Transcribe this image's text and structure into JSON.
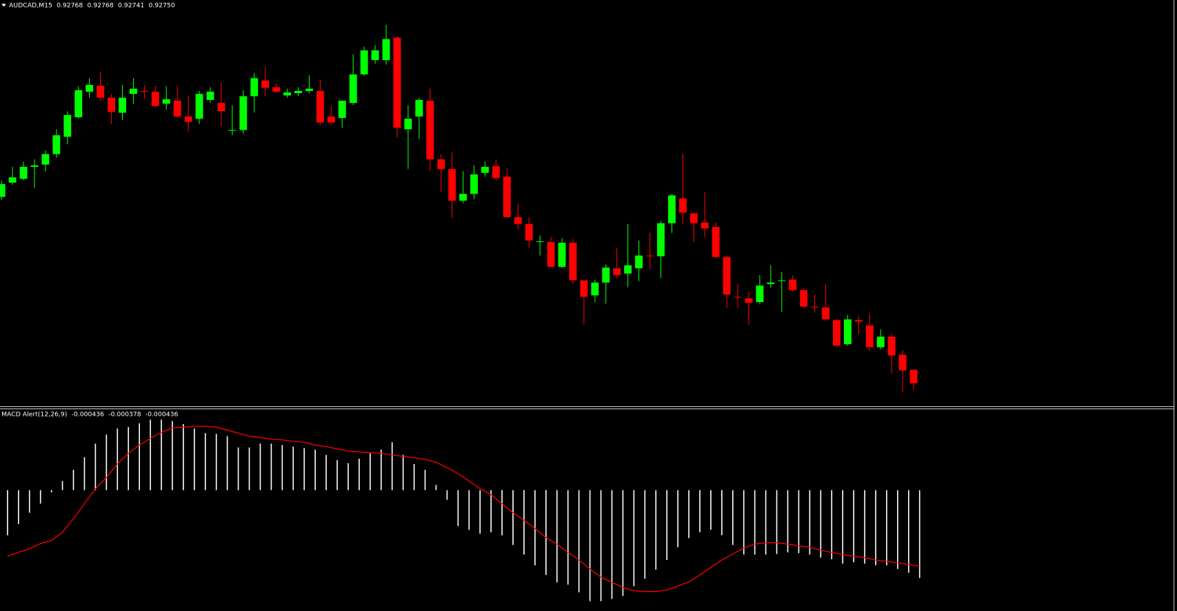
{
  "chart_data": [
    {
      "type": "candlestick",
      "title": "AUDCAD,M15",
      "header_values": [
        "0.92768",
        "0.92768",
        "0.92741",
        "0.92750"
      ],
      "ylim": [
        0.9272,
        0.9326
      ],
      "up_color": "#00ff00",
      "down_color": "#ff0000",
      "open": [
        0.92998,
        0.93017,
        0.93022,
        0.93038,
        0.93041,
        0.93055,
        0.93078,
        0.93104,
        0.93138,
        0.93146,
        0.9313,
        0.9311,
        0.93135,
        0.93139,
        0.93138,
        0.93122,
        0.93126,
        0.93105,
        0.93102,
        0.93127,
        0.93123,
        0.93086,
        0.93087,
        0.93132,
        0.93153,
        0.93144,
        0.93133,
        0.93136,
        0.93139,
        0.93139,
        0.93105,
        0.93103,
        0.93123,
        0.93161,
        0.9318,
        0.9318,
        0.9321,
        0.93088,
        0.93105,
        0.93126,
        0.93048,
        0.93035,
        0.92993,
        0.93002,
        0.9303,
        0.93039,
        0.93025,
        0.92971,
        0.92962,
        0.92938,
        0.92938,
        0.92905,
        0.92937,
        0.92887,
        0.92867,
        0.92884,
        0.92903,
        0.92896,
        0.92903,
        0.9292,
        0.92919,
        0.92963,
        0.92996,
        0.92976,
        0.92964,
        0.92958,
        0.92918,
        0.92865,
        0.92863,
        0.92858,
        0.92882,
        0.92886,
        0.92888,
        0.92874,
        0.92852,
        0.92851,
        0.92834,
        0.92802,
        0.92834,
        0.92827,
        0.92798,
        0.92812,
        0.92788,
        0.92768
      ],
      "high": [
        0.9302,
        0.93038,
        0.93045,
        0.93048,
        0.9306,
        0.93088,
        0.93112,
        0.93145,
        0.93156,
        0.93164,
        0.93135,
        0.93147,
        0.93156,
        0.93147,
        0.93146,
        0.93145,
        0.93146,
        0.93133,
        0.93139,
        0.93144,
        0.9315,
        0.9312,
        0.9314,
        0.93163,
        0.93171,
        0.93149,
        0.93142,
        0.93144,
        0.9316,
        0.93154,
        0.93119,
        0.93126,
        0.93188,
        0.93198,
        0.932,
        0.93227,
        0.93212,
        0.9312,
        0.9313,
        0.93142,
        0.93055,
        0.93057,
        0.93032,
        0.9304,
        0.93045,
        0.93048,
        0.93036,
        0.92989,
        0.92971,
        0.92947,
        0.92945,
        0.92943,
        0.92942,
        0.92887,
        0.92888,
        0.92908,
        0.9293,
        0.92962,
        0.9294,
        0.9295,
        0.92966,
        0.93002,
        0.93055,
        0.92978,
        0.93004,
        0.92964,
        0.9292,
        0.92882,
        0.92872,
        0.92894,
        0.92907,
        0.92898,
        0.92894,
        0.92877,
        0.92868,
        0.92882,
        0.92836,
        0.92841,
        0.9284,
        0.92842,
        0.92822,
        0.92816,
        0.92794,
        0.92768
      ],
      "low": [
        0.92994,
        0.93014,
        0.9302,
        0.9301,
        0.93032,
        0.9305,
        0.93068,
        0.93102,
        0.9313,
        0.93126,
        0.93095,
        0.931,
        0.93122,
        0.93128,
        0.93117,
        0.93114,
        0.93103,
        0.93085,
        0.93095,
        0.93123,
        0.93092,
        0.9308,
        0.93082,
        0.9311,
        0.93132,
        0.93136,
        0.9313,
        0.93132,
        0.93136,
        0.93093,
        0.93094,
        0.9309,
        0.9312,
        0.93159,
        0.93175,
        0.93174,
        0.93077,
        0.93035,
        0.93075,
        0.93032,
        0.93005,
        0.9297,
        0.9299,
        0.92995,
        0.93025,
        0.9302,
        0.9297,
        0.92955,
        0.9293,
        0.9292,
        0.92904,
        0.92903,
        0.92882,
        0.92828,
        0.92858,
        0.92856,
        0.9289,
        0.92878,
        0.92886,
        0.92902,
        0.9289,
        0.9295,
        0.92962,
        0.92938,
        0.92944,
        0.92916,
        0.9285,
        0.9285,
        0.92828,
        0.92855,
        0.92877,
        0.92845,
        0.92872,
        0.9285,
        0.92844,
        0.92833,
        0.92798,
        0.928,
        0.92815,
        0.92793,
        0.92795,
        0.92763,
        0.92738,
        0.92741
      ],
      "close": [
        0.93015,
        0.93024,
        0.93038,
        0.9304,
        0.93055,
        0.9308,
        0.93107,
        0.9314,
        0.93147,
        0.9313,
        0.93111,
        0.9313,
        0.93142,
        0.93138,
        0.93119,
        0.93128,
        0.93105,
        0.93098,
        0.93135,
        0.93138,
        0.93112,
        0.93087,
        0.93132,
        0.93156,
        0.93143,
        0.93138,
        0.93137,
        0.93139,
        0.93142,
        0.93097,
        0.93097,
        0.93126,
        0.93161,
        0.93193,
        0.93193,
        0.93208,
        0.9309,
        0.93102,
        0.93127,
        0.93048,
        0.93035,
        0.92993,
        0.93002,
        0.93028,
        0.93038,
        0.93023,
        0.92971,
        0.92962,
        0.9294,
        0.92939,
        0.92905,
        0.92937,
        0.92887,
        0.92865,
        0.92884,
        0.92904,
        0.92894,
        0.92907,
        0.9292,
        0.92919,
        0.92963,
        0.93,
        0.92977,
        0.92963,
        0.92956,
        0.92918,
        0.92868,
        0.92864,
        0.92857,
        0.9288,
        0.92884,
        0.92887,
        0.92874,
        0.92852,
        0.92851,
        0.92835,
        0.928,
        0.92835,
        0.92832,
        0.92798,
        0.92812,
        0.92787,
        0.92767,
        0.9275
      ]
    },
    {
      "type": "macd",
      "title": "MACD Alert(12,26,9)",
      "header_values": [
        "-0.000436",
        "-0.000378",
        "-0.000436"
      ],
      "ylim": [
        -0.0006,
        0.0004
      ],
      "histogram": {
        "color": "#ffffff",
        "values": [
          -0.000224,
          -0.000168,
          -0.000112,
          -6.7e-05,
          -1.1e-05,
          4.5e-05,
          0.000101,
          0.000164,
          0.000231,
          0.000276,
          0.000306,
          0.000313,
          0.000332,
          0.00035,
          0.00035,
          0.000343,
          0.000328,
          0.000306,
          0.000283,
          0.000279,
          0.000268,
          0.000212,
          0.000212,
          0.000231,
          0.000231,
          0.000224,
          0.000216,
          0.000209,
          0.000201,
          0.000175,
          0.000149,
          0.000134,
          0.000156,
          0.000183,
          0.000201,
          0.000238,
          0.000175,
          0.00013,
          0.000101,
          2.6e-05,
          -4.8e-05,
          -0.000179,
          -0.000197,
          -0.000216,
          -0.000209,
          -0.000224,
          -0.000272,
          -0.00032,
          -0.000373,
          -0.000421,
          -0.000458,
          -0.000469,
          -0.000507,
          -0.000551,
          -0.000551,
          -0.00054,
          -0.000525,
          -0.000477,
          -0.00044,
          -0.000395,
          -0.000347,
          -0.000283,
          -0.000238,
          -0.000209,
          -0.000197,
          -0.000224,
          -0.000272,
          -0.00032,
          -0.00032,
          -0.00032,
          -0.000317,
          -0.000309,
          -0.000313,
          -0.00032,
          -0.000335,
          -0.000343,
          -0.000365,
          -0.000358,
          -0.000365,
          -0.000373,
          -0.000373,
          -0.000391,
          -0.00041,
          -0.000436
        ]
      },
      "signal": {
        "color": "#ff0000",
        "values": [
          -0.000328,
          -0.000309,
          -0.000291,
          -0.000265,
          -0.00025,
          -0.000209,
          -0.000142,
          -6.7e-05,
          7e-06,
          6.3e-05,
          0.00013,
          0.000183,
          0.000224,
          0.000257,
          0.000287,
          0.000309,
          0.000313,
          0.000317,
          0.000317,
          0.000313,
          0.000298,
          0.000283,
          0.000268,
          0.000261,
          0.000253,
          0.00025,
          0.000242,
          0.000238,
          0.000224,
          0.000216,
          0.000205,
          0.000194,
          0.00019,
          0.000186,
          0.000183,
          0.000175,
          0.000168,
          0.00016,
          0.000153,
          0.000138,
          0.000112,
          8.2e-05,
          4.5e-05,
          7e-06,
          -2.2e-05,
          -6.7e-05,
          -0.000112,
          -0.000149,
          -0.00019,
          -0.000235,
          -0.000268,
          -0.000309,
          -0.000347,
          -0.000391,
          -0.000432,
          -0.000458,
          -0.000484,
          -0.000499,
          -0.000503,
          -0.000503,
          -0.000496,
          -0.000477,
          -0.000455,
          -0.000421,
          -0.000384,
          -0.000347,
          -0.000317,
          -0.000287,
          -0.000268,
          -0.000261,
          -0.000261,
          -0.000268,
          -0.000276,
          -0.000283,
          -0.000298,
          -0.000309,
          -0.00032,
          -0.000328,
          -0.000335,
          -0.000347,
          -0.000354,
          -0.000361,
          -0.000369,
          -0.000378
        ]
      }
    }
  ]
}
